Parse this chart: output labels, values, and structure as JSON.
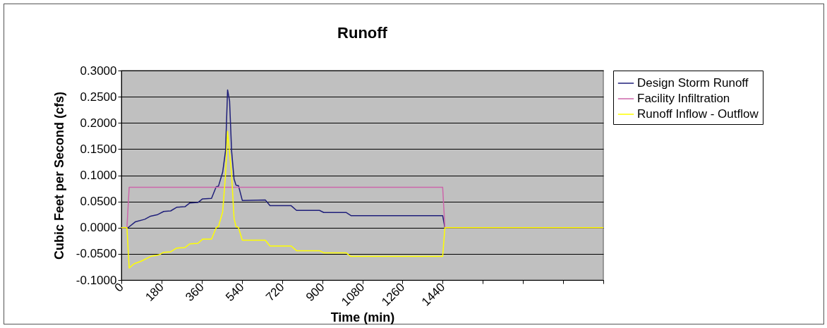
{
  "chart_data": {
    "type": "line",
    "title": "Runoff",
    "xlabel": "Time (min)",
    "ylabel": "Cubic Feet per Second (cfs)",
    "xlim": [
      0,
      2160
    ],
    "xticks": [
      0,
      180,
      360,
      540,
      720,
      900,
      1080,
      1260,
      1440,
      {
        "value": 1620,
        "label": null
      },
      {
        "value": 1800,
        "label": null
      },
      {
        "value": 1980,
        "label": null
      },
      {
        "value": 2160,
        "label": null
      }
    ],
    "ylim": [
      -0.1,
      0.3
    ],
    "yticks": [
      {
        "value": -0.1,
        "label": "-0.1000"
      },
      {
        "value": -0.05,
        "label": "-0.0500"
      },
      {
        "value": 0,
        "label": "0.0000"
      },
      {
        "value": 0.05,
        "label": "0.0500"
      },
      {
        "value": 0.1,
        "label": "0.1000"
      },
      {
        "value": 0.15,
        "label": "0.1500"
      },
      {
        "value": 0.2,
        "label": "0.2000"
      },
      {
        "value": 0.25,
        "label": "0.2500"
      },
      {
        "value": 0.3,
        "label": "0.3000"
      }
    ],
    "grid": "y",
    "legend": "right",
    "marker": "none",
    "line_style": "solid",
    "series": [
      {
        "name": "Design Storm Runoff",
        "color": "#1f1f7a",
        "x": [
          0,
          30,
          62,
          105,
          131,
          163,
          190,
          221,
          248,
          285,
          306,
          343,
          364,
          404,
          425,
          435,
          454,
          467,
          476,
          485,
          494,
          505,
          514,
          525,
          542,
          645,
          666,
          761,
          785,
          888,
          907,
          1007,
          1029,
          1440,
          1450,
          2160
        ],
        "values": [
          0,
          0,
          0.011,
          0.016,
          0.022,
          0.025,
          0.031,
          0.032,
          0.039,
          0.04,
          0.047,
          0.048,
          0.055,
          0.056,
          0.078,
          0.079,
          0.106,
          0.147,
          0.263,
          0.242,
          0.147,
          0.093,
          0.081,
          0.08,
          0.052,
          0.053,
          0.042,
          0.042,
          0.033,
          0.033,
          0.029,
          0.029,
          0.023,
          0.023,
          0,
          0
        ]
      },
      {
        "name": "Facility Infiltration",
        "color": "#cc66aa",
        "x": [
          0,
          25,
          35,
          1440,
          1450,
          2160
        ],
        "values": [
          0,
          0,
          0.077,
          0.077,
          0,
          0
        ]
      },
      {
        "name": "Runoff Inflow - Outflow",
        "color": "#ffff00",
        "x": [
          0,
          25,
          35,
          57,
          89,
          131,
          168,
          190,
          221,
          248,
          285,
          306,
          343,
          364,
          404,
          425,
          435,
          454,
          467,
          476,
          494,
          505,
          514,
          525,
          542,
          645,
          666,
          761,
          785,
          888,
          907,
          1007,
          1029,
          1440,
          1450,
          2160
        ],
        "values": [
          0,
          0,
          -0.077,
          -0.069,
          -0.064,
          -0.055,
          -0.052,
          -0.047,
          -0.046,
          -0.039,
          -0.038,
          -0.031,
          -0.03,
          -0.022,
          -0.022,
          0,
          0.002,
          0.03,
          0.102,
          0.184,
          0.102,
          0.018,
          0.002,
          0,
          -0.024,
          -0.024,
          -0.035,
          -0.035,
          -0.044,
          -0.044,
          -0.048,
          -0.048,
          -0.055,
          -0.055,
          0,
          0
        ]
      }
    ]
  }
}
